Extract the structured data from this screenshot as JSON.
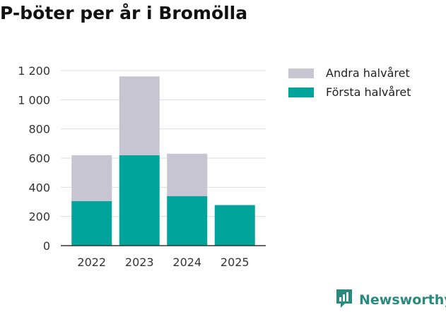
{
  "title": "P-böter per år i Bromölla",
  "brand": {
    "name": "Newsworthy",
    "icon": "newsworthy-logo-icon",
    "color": "#2a8a7e"
  },
  "colors": {
    "andra": "#c6c5d1",
    "forsta": "#00a49b",
    "axis": "#333333",
    "grid": "#dddddd"
  },
  "legend": [
    {
      "label": "Andra halvåret",
      "color": "#c6c5d1"
    },
    {
      "label": "Första halvåret",
      "color": "#00a49b"
    }
  ],
  "chart_data": {
    "type": "bar",
    "stacked": true,
    "title": "P-böter per år i Bromölla",
    "xlabel": "",
    "ylabel": "",
    "categories": [
      "2022",
      "2023",
      "2024",
      "2025"
    ],
    "series": [
      {
        "name": "Första halvåret",
        "values": [
          305,
          620,
          340,
          278
        ]
      },
      {
        "name": "Andra halvåret",
        "values": [
          315,
          540,
          290,
          0
        ]
      }
    ],
    "ylim": [
      0,
      1200
    ],
    "yticks": [
      0,
      200,
      400,
      600,
      800,
      1000,
      1200
    ],
    "ytick_labels": [
      "0",
      "200",
      "400",
      "600",
      "800",
      "1 000",
      "1 200"
    ],
    "grid": true,
    "legend_position": "top-right"
  }
}
